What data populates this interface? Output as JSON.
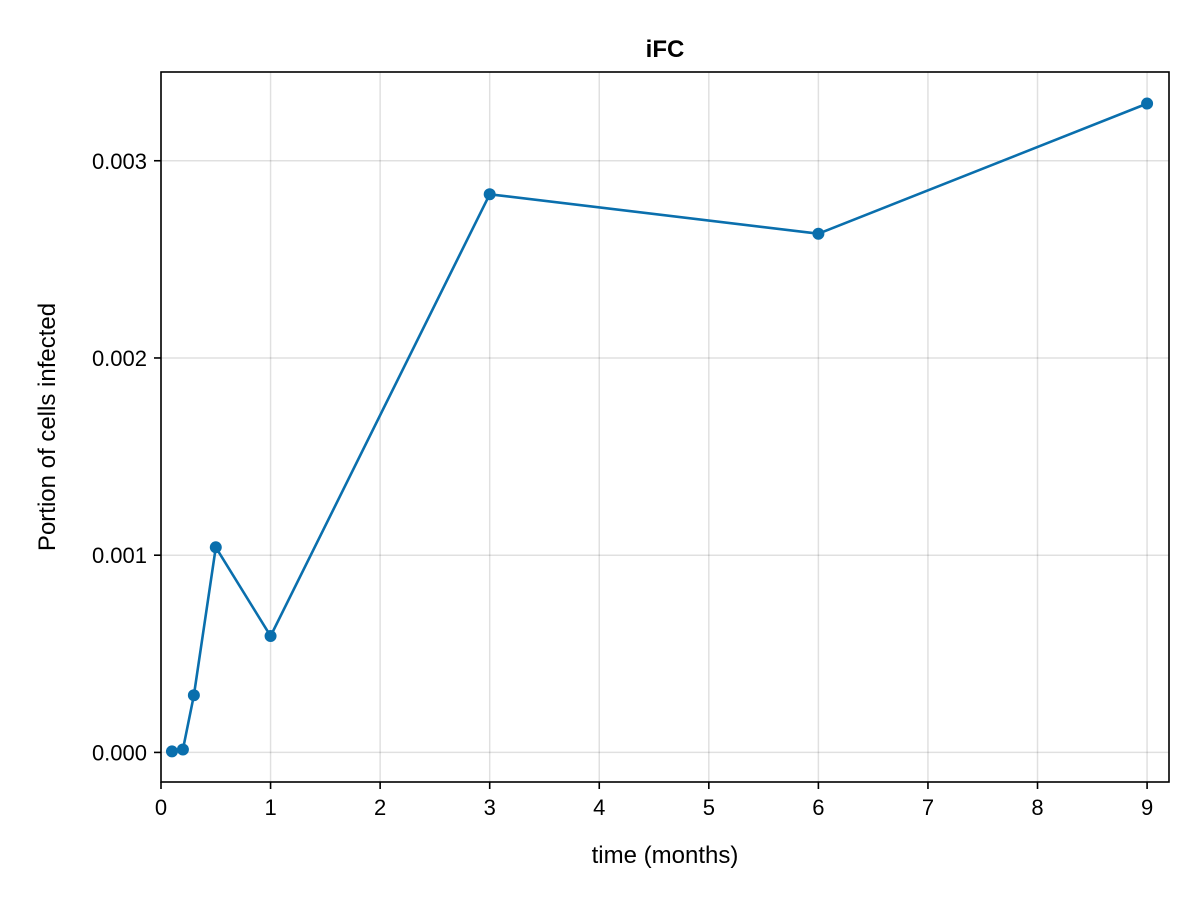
{
  "chart_data": {
    "type": "line",
    "title": "iFC",
    "xlabel": "time (months)",
    "ylabel": "Portion of cells infected",
    "xlim": [
      0,
      9.2
    ],
    "ylim": [
      -0.00015,
      0.00345
    ],
    "xticks": [
      0,
      1,
      2,
      3,
      4,
      5,
      6,
      7,
      8,
      9
    ],
    "xtick_labels": [
      "0",
      "1",
      "2",
      "3",
      "4",
      "5",
      "6",
      "7",
      "8",
      "9"
    ],
    "yticks": [
      0.0,
      0.001,
      0.002,
      0.003
    ],
    "ytick_labels": [
      "0.000",
      "0.001",
      "0.002",
      "0.003"
    ],
    "grid": true,
    "series": [
      {
        "color": "#0a6fad",
        "markers": true,
        "x": [
          0.1,
          0.2,
          0.3,
          0.5,
          1,
          3,
          6,
          9
        ],
        "y": [
          5e-06,
          1.5e-05,
          0.00029,
          0.00104,
          0.00059,
          0.00283,
          0.00263,
          0.00329
        ]
      }
    ]
  }
}
